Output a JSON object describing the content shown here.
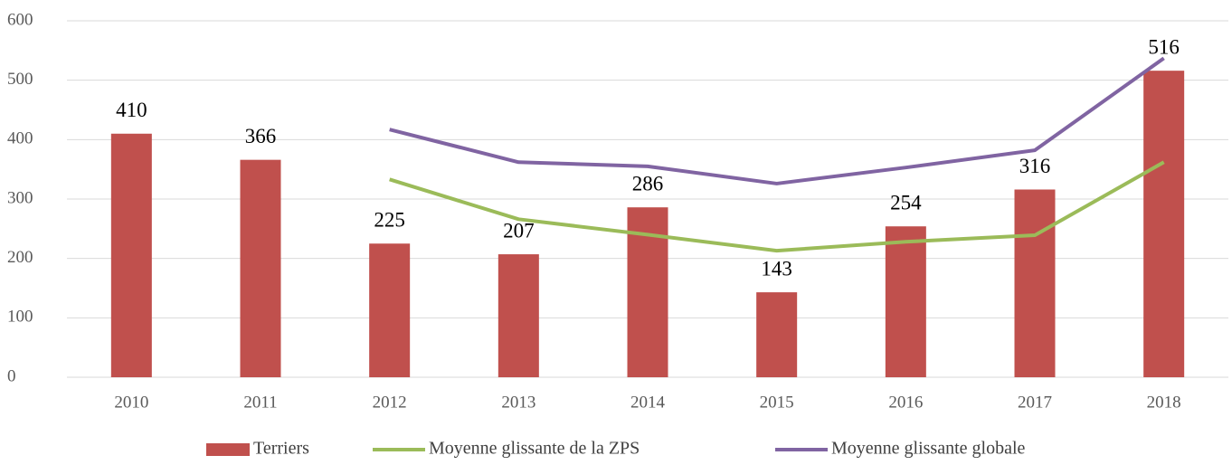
{
  "chart_data": {
    "type": "bar",
    "categories": [
      "2010",
      "2011",
      "2012",
      "2013",
      "2014",
      "2015",
      "2016",
      "2017",
      "2018"
    ],
    "series": [
      {
        "name": "Terriers",
        "type": "bar",
        "color": "#c0504d",
        "values": [
          410,
          366,
          225,
          207,
          286,
          143,
          254,
          316,
          516
        ]
      },
      {
        "name": "Moyenne glissante de la ZPS",
        "type": "line",
        "color": "#9bbb59",
        "values": [
          null,
          null,
          333,
          266,
          240,
          213,
          228,
          239,
          362
        ]
      },
      {
        "name": "Moyenne glissante globale",
        "type": "line",
        "color": "#8064a2",
        "values": [
          null,
          null,
          417,
          362,
          355,
          326,
          353,
          382,
          537
        ]
      }
    ],
    "ylim": [
      0,
      600
    ],
    "yticks": [
      0,
      100,
      200,
      300,
      400,
      500,
      600
    ],
    "grid": true,
    "legend": "bottom"
  }
}
